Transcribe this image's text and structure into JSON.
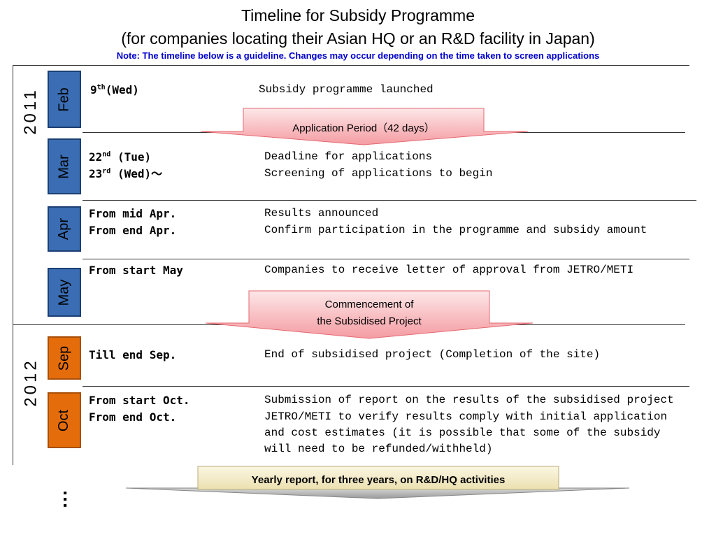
{
  "header": {
    "title": "Timeline for Subsidy Programme",
    "subtitle": "(for companies locating their Asian HQ or an R&D facility in Japan)",
    "note": "Note: The timeline below is a guideline.  Changes may occur depending on the time taken to screen applications"
  },
  "years": [
    "2011",
    "2012"
  ],
  "months": {
    "feb": "Feb",
    "mar": "Mar",
    "apr": "Apr",
    "may": "May",
    "sep": "Sep",
    "oct": "Oct"
  },
  "rows": {
    "feb_date1": "(Wed)",
    "feb_date1_num": "9",
    "feb_date1_sup": "th",
    "feb_desc1": "Subsidy programme launched",
    "mar_date1_num": "22",
    "mar_date1_sup": "nd",
    "mar_date1": " (Tue)",
    "mar_date2_num": "23",
    "mar_date2_sup": "rd",
    "mar_date2": " (Wed)～",
    "mar_desc1": "Deadline for applications",
    "mar_desc2": "Screening of applications to begin",
    "apr_date1": "From mid Apr.",
    "apr_date2": "From end Apr.",
    "apr_desc1": "Results announced",
    "apr_desc2": "Confirm participation in the programme and subsidy amount",
    "may_date1": "From start May",
    "may_desc1": "Companies to receive letter of approval from JETRO/METI",
    "sep_date1": "Till end Sep.",
    "sep_desc1": "End of subsidised project (Completion of the site)",
    "oct_date1": "From start Oct.",
    "oct_date2": "From end Oct.",
    "oct_desc1": "Submission of report on the results of the subsidised project",
    "oct_desc2": "JETRO/METI to verify results comply with initial application",
    "oct_desc3": "and cost estimates (it is possible that some of the subsidy",
    "oct_desc4": "will need to be refunded/withheld)"
  },
  "callouts": {
    "application_period": "Application Period（42 days）",
    "commencement_line1": "Commencement of",
    "commencement_line2": "the Subsidised Project",
    "yearly_report": "Yearly report, for three years, on R&D/HQ activities"
  },
  "colors": {
    "month_blue": "#3a6db3",
    "month_orange": "#e46c0a",
    "arrow_pink": "#f7b0b4",
    "arrow_cream": "#f5ecc8",
    "note_blue": "#0000cc"
  },
  "continuation": "…"
}
